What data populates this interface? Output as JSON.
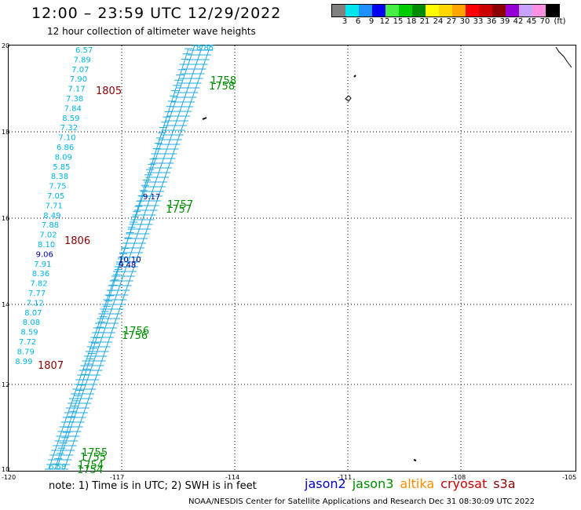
{
  "title": "12:00 – 23:59 UTC 12/29/2022",
  "subtitle": "12 hour collection of altimeter wave heights",
  "legend": {
    "colors": [
      "#808080",
      "#00e5ee",
      "#1e90ff",
      "#0000ee",
      "#44ee44",
      "#00cc00",
      "#008b00",
      "#ffff00",
      "#ffd700",
      "#ffa500",
      "#ff0000",
      "#cd0000",
      "#8b0000",
      "#9400d3",
      "#c8a2ff",
      "#ff90e0",
      "#000000"
    ],
    "labels": [
      "3",
      "6",
      "9",
      "12",
      "15",
      "18",
      "21",
      "24",
      "27",
      "30",
      "33",
      "36",
      "39",
      "42",
      "45",
      "70",
      "(ft)"
    ]
  },
  "map": {
    "lat_ticks": [
      "20",
      "18",
      "16",
      "14",
      "12",
      "10"
    ],
    "lon_ticks": [
      "-120",
      "-117",
      "-114",
      "-111",
      "-108",
      "-105"
    ],
    "track_color": "#1ea8e0",
    "wave_labels": [
      "6.57",
      "7.89",
      "7.07",
      "7.90",
      "7.17",
      "7.38",
      "7.84",
      "8.59",
      "7.32",
      "7.10",
      "6.86",
      "8.09",
      "5.85",
      "8.38",
      "7.75",
      "7.05",
      "7.71",
      "8.49",
      "7.88",
      "7.02",
      "8.10",
      "9.06",
      "7.91",
      "8.36",
      "7.82",
      "7.77",
      "7.12",
      "8.07",
      "8.08",
      "8.59",
      "7.72",
      "8.79",
      "8.99"
    ],
    "time_labels": [
      {
        "text": "1805",
        "color": "#8b0000"
      },
      {
        "text": "1806",
        "color": "#8b0000"
      },
      {
        "text": "1807",
        "color": "#8b0000"
      },
      {
        "text": "1758",
        "color": "#008b00"
      },
      {
        "text": "1758",
        "color": "#008b00"
      },
      {
        "text": "1757",
        "color": "#008b00"
      },
      {
        "text": "1757",
        "color": "#008b00"
      },
      {
        "text": "1756",
        "color": "#008b00"
      },
      {
        "text": "1756",
        "color": "#008b00"
      },
      {
        "text": "1755",
        "color": "#008b00"
      },
      {
        "text": "1755",
        "color": "#008b00"
      },
      {
        "text": "1754",
        "color": "#008b00"
      },
      {
        "text": "1754",
        "color": "#008b00"
      }
    ],
    "jason_labels": [
      "9.17",
      "10.10",
      "9.48"
    ],
    "track_labels": [
      "8.85",
      "6.58"
    ]
  },
  "note": "note: 1) Time is in UTC; 2) SWH is in feet",
  "satellites": [
    {
      "name": "jason2",
      "color": "#0000cd"
    },
    {
      "name": "jason3",
      "color": "#008b00"
    },
    {
      "name": "altika",
      "color": "#ff8c00"
    },
    {
      "name": "cryosat",
      "color": "#cd0000"
    },
    {
      "name": "s3a",
      "color": "#8b0000"
    }
  ],
  "footer": "NOAA/NESDIS Center for Satellite Applications and Research     Dec 31 08:30:09 UTC 2022"
}
